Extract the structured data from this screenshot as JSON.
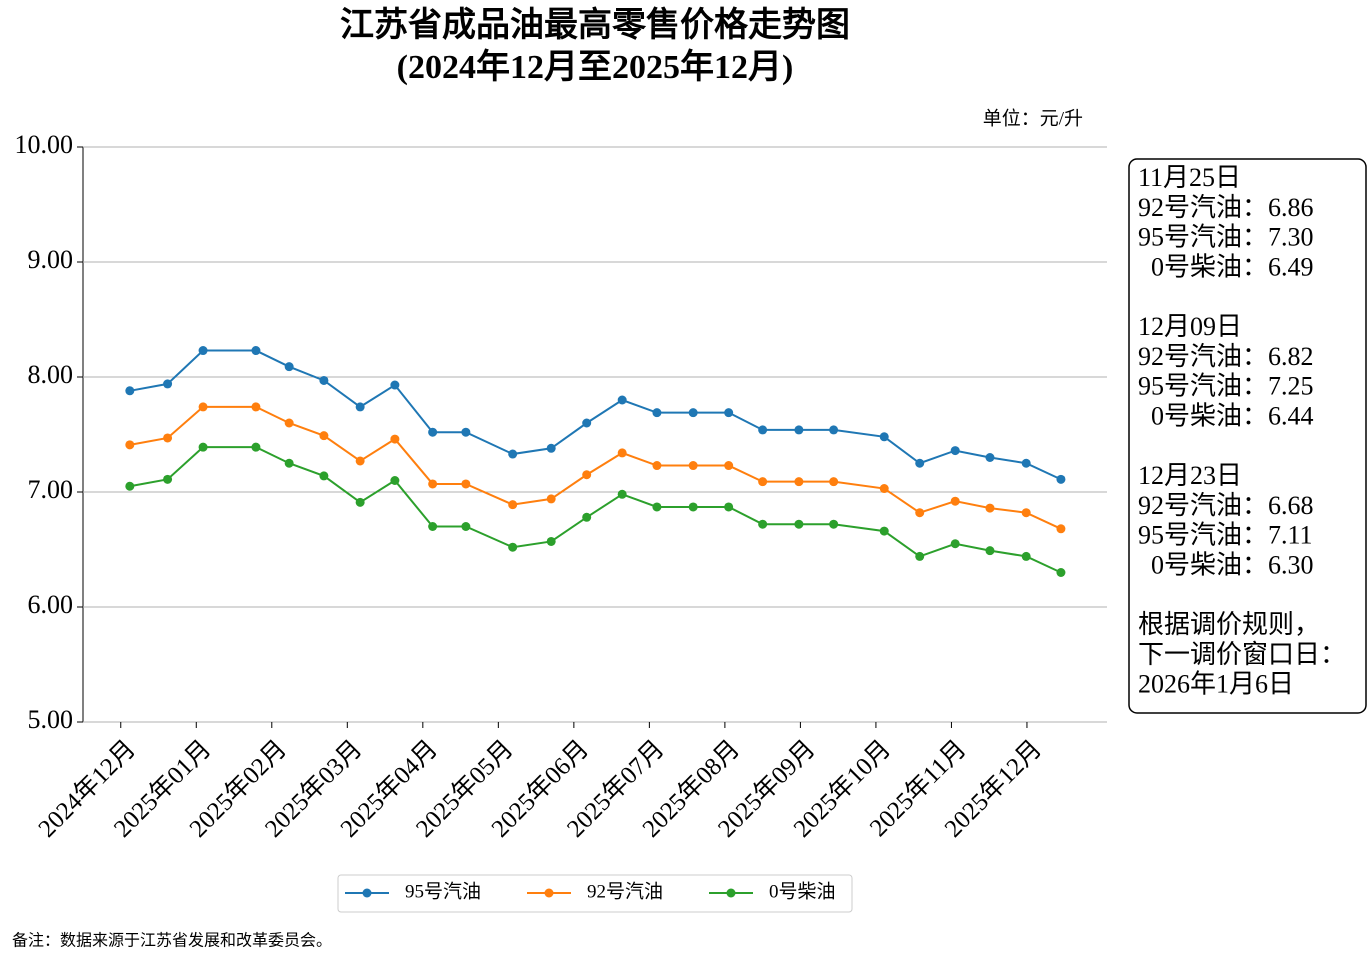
{
  "chart_data": {
    "type": "line",
    "title": "江苏省成品油最高零售价格走势图",
    "subtitle": "(2024年12月至2025年12月)",
    "unit_label": "单位：元/升",
    "footnote": "备注：数据来源于江苏省发展和改革委员会。",
    "x": [
      0.12,
      0.62,
      1.09,
      1.79,
      2.23,
      2.69,
      3.17,
      3.63,
      4.13,
      4.57,
      5.19,
      5.7,
      6.17,
      6.64,
      7.1,
      7.58,
      8.05,
      8.5,
      8.98,
      9.44,
      10.11,
      10.58,
      11.05,
      11.51,
      11.99,
      12.45
    ],
    "xlim": [
      -0.5,
      13.06
    ],
    "xticks": [
      {
        "value": 0,
        "label": "2024年12月"
      },
      {
        "value": 1,
        "label": "2025年01月"
      },
      {
        "value": 2,
        "label": "2025年02月"
      },
      {
        "value": 3,
        "label": "2025年03月"
      },
      {
        "value": 4,
        "label": "2025年04月"
      },
      {
        "value": 5,
        "label": "2025年05月"
      },
      {
        "value": 6,
        "label": "2025年06月"
      },
      {
        "value": 7,
        "label": "2025年07月"
      },
      {
        "value": 8,
        "label": "2025年08月"
      },
      {
        "value": 9,
        "label": "2025年09月"
      },
      {
        "value": 10,
        "label": "2025年10月"
      },
      {
        "value": 11,
        "label": "2025年11月"
      },
      {
        "value": 12,
        "label": "2025年12月"
      }
    ],
    "ylim": [
      5,
      10
    ],
    "yticks": [
      {
        "value": 5,
        "label": "5.00"
      },
      {
        "value": 6,
        "label": "6.00"
      },
      {
        "value": 7,
        "label": "7.00"
      },
      {
        "value": 8,
        "label": "8.00"
      },
      {
        "value": 9,
        "label": "9.00"
      },
      {
        "value": 10,
        "label": "10.00"
      }
    ],
    "grid": true,
    "legend": "bottom",
    "series": [
      {
        "name": "95号汽油",
        "color": "#1f77b4",
        "values": [
          7.88,
          7.94,
          8.23,
          8.23,
          8.09,
          7.97,
          7.74,
          7.93,
          7.52,
          7.52,
          7.33,
          7.38,
          7.6,
          7.8,
          7.69,
          7.69,
          7.69,
          7.54,
          7.54,
          7.54,
          7.48,
          7.25,
          7.36,
          7.3,
          7.25,
          7.11
        ]
      },
      {
        "name": "92号汽油",
        "color": "#ff7f0e",
        "values": [
          7.41,
          7.47,
          7.74,
          7.74,
          7.6,
          7.49,
          7.27,
          7.46,
          7.07,
          7.07,
          6.89,
          6.94,
          7.15,
          7.34,
          7.23,
          7.23,
          7.23,
          7.09,
          7.09,
          7.09,
          7.03,
          6.82,
          6.92,
          6.86,
          6.82,
          6.68
        ]
      },
      {
        "name": "0号柴油",
        "color": "#2ca02c",
        "values": [
          7.05,
          7.11,
          7.39,
          7.39,
          7.25,
          7.14,
          6.91,
          7.1,
          6.7,
          6.7,
          6.52,
          6.57,
          6.78,
          6.98,
          6.87,
          6.87,
          6.87,
          6.72,
          6.72,
          6.72,
          6.66,
          6.44,
          6.55,
          6.49,
          6.44,
          6.3
        ]
      }
    ],
    "annotation": [
      [
        "11月25日",
        "92号汽油：6.86",
        "95号汽油：7.30",
        "  0号柴油：6.49"
      ],
      [
        "12月09日",
        "92号汽油：6.82",
        "95号汽油：7.25",
        "  0号柴油：6.44"
      ],
      [
        "12月23日",
        "92号汽油：6.68",
        "95号汽油：7.11",
        "  0号柴油：6.30"
      ],
      [
        "根据调价规则，",
        "下一调价窗口日：",
        "2026年1月6日"
      ]
    ]
  }
}
